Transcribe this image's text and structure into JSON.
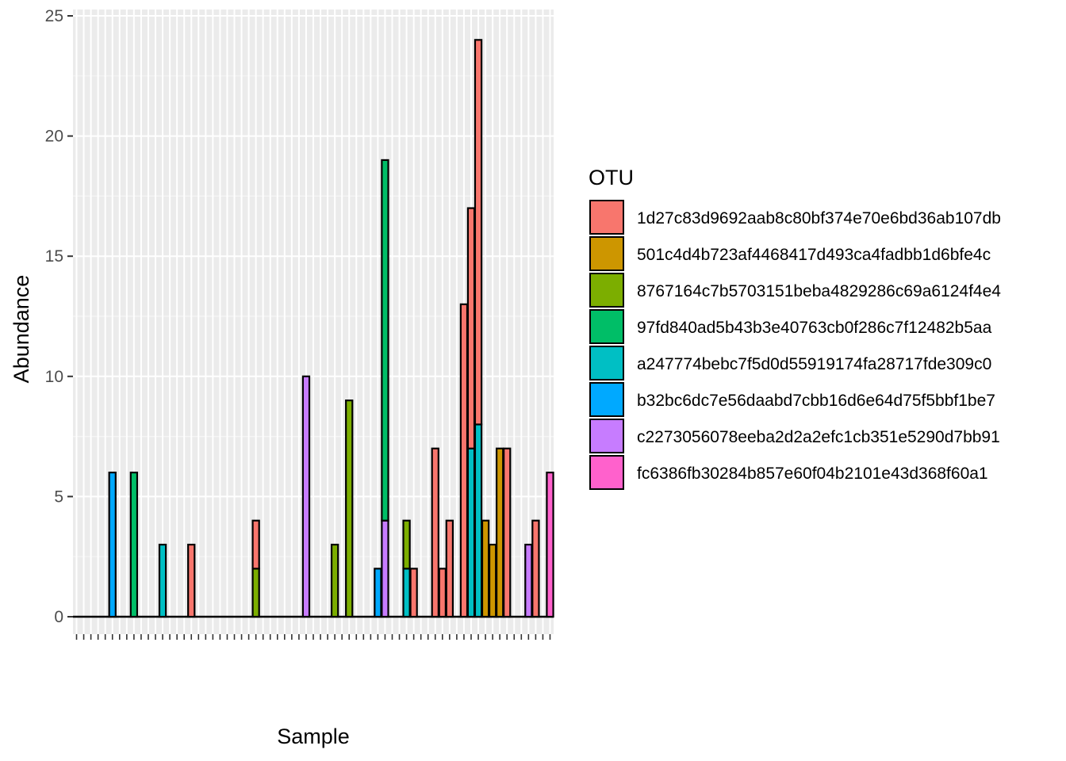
{
  "chart_data": {
    "type": "bar",
    "stacked": true,
    "xlabel": "Sample",
    "ylabel": "Abundance",
    "ylim": [
      0,
      25.2
    ],
    "yticks": [
      0,
      5,
      10,
      15,
      20,
      25
    ],
    "n_samples": 67,
    "grid": true,
    "legend": {
      "title": "OTU",
      "placement": "right",
      "entries": [
        {
          "name": "1d27c83d9692aab8c80bf374e70e6bd36ab107db",
          "color": "#F8766D"
        },
        {
          "name": "501c4d4b723af4468417d493ca4fadbb1d6bfe4c",
          "color": "#CD9600"
        },
        {
          "name": "8767164c7b5703151beba4829286c69a6124f4e4",
          "color": "#7CAE00"
        },
        {
          "name": "97fd840ad5b43b3e40763cb0f286c7f12482b5aa",
          "color": "#00BE67"
        },
        {
          "name": "a247774bebc7f5d0d55919174fa28717fde309c0",
          "color": "#00BFC4"
        },
        {
          "name": "b32bc6dc7e56daabd7cbb16d6e64d75f5bbf1be7",
          "color": "#00A9FF"
        },
        {
          "name": "c2273056078eeba2d2a2efc1cb351e5290d7bb91",
          "color": "#C77CFF"
        },
        {
          "name": "fc6386fb30284b857e60f04b2101e43d368f60a1",
          "color": "#FF61CC"
        }
      ]
    },
    "bars": [
      {
        "sample": 6,
        "stack": [
          {
            "otu": 5,
            "value": 6
          }
        ]
      },
      {
        "sample": 9,
        "stack": [
          {
            "otu": 3,
            "value": 6
          }
        ]
      },
      {
        "sample": 13,
        "stack": [
          {
            "otu": 4,
            "value": 3
          }
        ]
      },
      {
        "sample": 17,
        "stack": [
          {
            "otu": 0,
            "value": 3
          }
        ]
      },
      {
        "sample": 26,
        "stack": [
          {
            "otu": 2,
            "value": 2
          },
          {
            "otu": 0,
            "value": 2
          }
        ]
      },
      {
        "sample": 33,
        "stack": [
          {
            "otu": 6,
            "value": 10
          }
        ]
      },
      {
        "sample": 37,
        "stack": [
          {
            "otu": 2,
            "value": 3
          }
        ]
      },
      {
        "sample": 39,
        "stack": [
          {
            "otu": 2,
            "value": 9
          }
        ]
      },
      {
        "sample": 43,
        "stack": [
          {
            "otu": 5,
            "value": 2
          }
        ]
      },
      {
        "sample": 44,
        "stack": [
          {
            "otu": 6,
            "value": 4
          },
          {
            "otu": 3,
            "value": 15
          }
        ]
      },
      {
        "sample": 47,
        "stack": [
          {
            "otu": 4,
            "value": 2
          },
          {
            "otu": 2,
            "value": 2
          }
        ]
      },
      {
        "sample": 48,
        "stack": [
          {
            "otu": 0,
            "value": 2
          }
        ]
      },
      {
        "sample": 51,
        "stack": [
          {
            "otu": 0,
            "value": 7
          }
        ]
      },
      {
        "sample": 52,
        "stack": [
          {
            "otu": 0,
            "value": 2
          }
        ]
      },
      {
        "sample": 53,
        "stack": [
          {
            "otu": 0,
            "value": 4
          }
        ]
      },
      {
        "sample": 55,
        "stack": [
          {
            "otu": 0,
            "value": 13
          }
        ]
      },
      {
        "sample": 56,
        "stack": [
          {
            "otu": 4,
            "value": 7
          },
          {
            "otu": 0,
            "value": 10
          }
        ]
      },
      {
        "sample": 57,
        "stack": [
          {
            "otu": 4,
            "value": 8
          },
          {
            "otu": 0,
            "value": 16
          }
        ]
      },
      {
        "sample": 58,
        "stack": [
          {
            "otu": 1,
            "value": 4
          }
        ]
      },
      {
        "sample": 59,
        "stack": [
          {
            "otu": 1,
            "value": 3
          }
        ]
      },
      {
        "sample": 60,
        "stack": [
          {
            "otu": 1,
            "value": 7
          }
        ]
      },
      {
        "sample": 61,
        "stack": [
          {
            "otu": 0,
            "value": 7
          }
        ]
      },
      {
        "sample": 64,
        "stack": [
          {
            "otu": 6,
            "value": 3
          }
        ]
      },
      {
        "sample": 65,
        "stack": [
          {
            "otu": 0,
            "value": 4
          }
        ]
      },
      {
        "sample": 67,
        "stack": [
          {
            "otu": 7,
            "value": 6
          }
        ]
      }
    ]
  }
}
